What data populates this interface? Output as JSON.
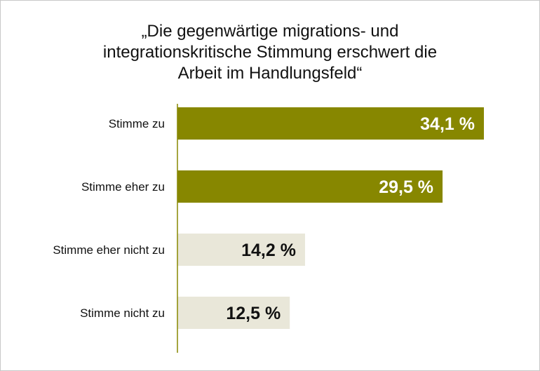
{
  "chart_data": {
    "type": "bar",
    "orientation": "horizontal",
    "title_lines": [
      "„Die gegenwärtige migrations- und",
      "integrationskritische Stimmung erschwert die",
      "Arbeit im Handlungsfeld“"
    ],
    "categories": [
      "Stimme zu",
      "Stimme eher zu",
      "Stimme eher nicht zu",
      "Stimme nicht zu"
    ],
    "values": [
      34.1,
      29.5,
      14.2,
      12.5
    ],
    "value_labels": [
      "34,1 %",
      "29,5 %",
      "14,2 %",
      "12,5 %"
    ],
    "unit": "%",
    "xlim": [
      0,
      40
    ],
    "xlabel": "",
    "ylabel": "",
    "grid": false,
    "colors": {
      "agree": "#878700",
      "disagree": "#e9e7d9",
      "agree_text": "#ffffff",
      "disagree_text": "#111111",
      "axis": "#878700"
    },
    "bar_color_keys": [
      "agree",
      "agree",
      "disagree",
      "disagree"
    ],
    "label_color_keys": [
      "agree_text",
      "agree_text",
      "disagree_text",
      "disagree_text"
    ]
  }
}
